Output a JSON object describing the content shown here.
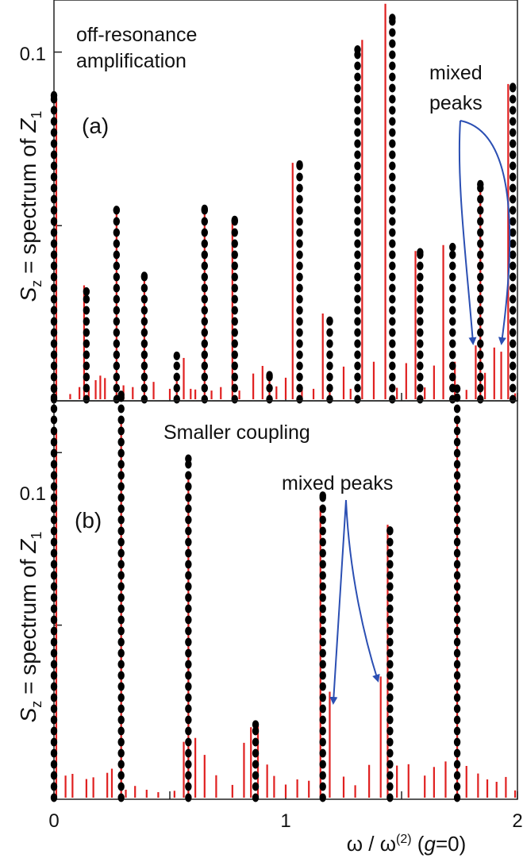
{
  "chart_data": [
    {
      "type": "line",
      "panel_label": "(a)",
      "title": "",
      "annotations": [
        "off-resonance",
        "amplification",
        "mixed",
        "peaks"
      ],
      "ylabel": "S_z = spectrum of Z_1",
      "ylabel_parts": {
        "s": "S",
        "s_sub": "z",
        "middle": " = spectrum of ",
        "z": "Z",
        "z_sub": "1"
      },
      "xlim": [
        0,
        2
      ],
      "ylim": [
        0,
        0.115
      ],
      "yticks": [
        {
          "value": 0.1,
          "label": "0.1"
        }
      ],
      "yticks_unlabeled": [
        0.05
      ],
      "series": [
        {
          "color": "#e02020",
          "style": "stick",
          "x": [
            0.01,
            0.07,
            0.11,
            0.13,
            0.15,
            0.18,
            0.2,
            0.22,
            0.27,
            0.3,
            0.34,
            0.39,
            0.43,
            0.5,
            0.53,
            0.56,
            0.59,
            0.61,
            0.65,
            0.68,
            0.72,
            0.77,
            0.8,
            0.86,
            0.9,
            0.93,
            0.96,
            1.0,
            1.03,
            1.07,
            1.12,
            1.16,
            1.19,
            1.25,
            1.28,
            1.33,
            1.38,
            1.43,
            1.48,
            1.52,
            1.56,
            1.6,
            1.64,
            1.68,
            1.73,
            1.78,
            1.82,
            1.84,
            1.86,
            1.9,
            1.93,
            1.96,
            1.99
          ],
          "y": [
            0.0872,
            0.0015,
            0.0035,
            0.0328,
            0.0032,
            0.0055,
            0.0068,
            0.0061,
            0.0543,
            0.004,
            0.0035,
            0.0355,
            0.005,
            0.003,
            0.0059,
            0.0119,
            0.003,
            0.0028,
            0.0539,
            0.0025,
            0.0035,
            0.0509,
            0.0025,
            0.0074,
            0.0096,
            0.0075,
            0.0037,
            0.0062,
            0.0681,
            0.0034,
            0.003,
            0.0247,
            0.0035,
            0.0094,
            0.003,
            0.1035,
            0.0108,
            0.1139,
            0.0033,
            0.0104,
            0.0427,
            0.0034,
            0.0097,
            0.0444,
            0.0108,
            0.0027,
            0.0155,
            0.0625,
            0.0076,
            0.0149,
            0.0137,
            0.0908,
            0.0017
          ]
        },
        {
          "color": "#000000",
          "style": "dots",
          "x": [
            0.0,
            0.14,
            0.27,
            0.39,
            0.53,
            0.65,
            0.78,
            0.93,
            1.06,
            1.19,
            1.31,
            1.46,
            1.58,
            1.72,
            1.84,
            1.98
          ],
          "y": [
            0.0875,
            0.031,
            0.0545,
            0.0355,
            0.0125,
            0.0548,
            0.0516,
            0.0069,
            0.0676,
            0.0226,
            0.1007,
            0.1098,
            0.0423,
            0.0438,
            0.0619,
            0.0899
          ]
        }
      ]
    },
    {
      "type": "line",
      "panel_label": "(b)",
      "title": "",
      "annotations": [
        "Smaller coupling",
        "mixed peaks"
      ],
      "ylabel": "S_z = spectrum of Z_1",
      "ylabel_parts": {
        "s": "S",
        "s_sub": "z",
        "middle": " = spectrum of ",
        "z": "Z",
        "z_sub": "1"
      },
      "xlabel": "ω / ω^(2) (g=0)",
      "xlabel_parts": {
        "omega": "ω / ω",
        "sup": "(2)",
        "open": " (",
        "g": "g",
        "close": "=0)"
      },
      "xlim": [
        0,
        2
      ],
      "ylim": [
        0,
        0.115
      ],
      "xticks": [
        {
          "value": 0,
          "label": "0"
        },
        {
          "value": 1,
          "label": "1"
        },
        {
          "value": 2,
          "label": "2"
        }
      ],
      "yticks": [
        {
          "value": 0.1,
          "label": "0.1"
        }
      ],
      "yticks_unlabeled": [
        0.05
      ],
      "series": [
        {
          "color": "#e02020",
          "style": "stick",
          "x": [
            0.01,
            0.05,
            0.08,
            0.14,
            0.17,
            0.23,
            0.25,
            0.29,
            0.31,
            0.35,
            0.4,
            0.45,
            0.52,
            0.56,
            0.58,
            0.61,
            0.65,
            0.7,
            0.77,
            0.82,
            0.85,
            0.88,
            0.92,
            0.95,
            1.0,
            1.05,
            1.1,
            1.15,
            1.19,
            1.25,
            1.3,
            1.36,
            1.41,
            1.44,
            1.48,
            1.53,
            1.6,
            1.64,
            1.69,
            1.74,
            1.78,
            1.83,
            1.87,
            1.91,
            1.95,
            1.99
          ],
          "y": [
            0.1061,
            0.0064,
            0.0069,
            0.0054,
            0.0059,
            0.0072,
            0.0084,
            0.1086,
            0.0023,
            0.0034,
            0.0023,
            0.0016,
            0.002,
            0.0162,
            0.0936,
            0.0173,
            0.0124,
            0.0065,
            0.0037,
            0.0159,
            0.0204,
            0.0209,
            0.0096,
            0.0063,
            0.0038,
            0.0053,
            0.0049,
            0.0845,
            0.0307,
            0.0061,
            0.0036,
            0.0095,
            0.0351,
            0.0791,
            0.0093,
            0.0097,
            0.0064,
            0.0089,
            0.0105,
            0.1107,
            0.0092,
            0.007,
            0.0053,
            0.0046,
            0.006,
            0.0021
          ]
        },
        {
          "color": "#000000",
          "style": "dots",
          "x": [
            0.0,
            0.29,
            0.58,
            0.87,
            1.16,
            1.45,
            1.74
          ],
          "y": [
            0.1185,
            0.1167,
            0.0982,
            0.0212,
            0.0875,
            0.0774,
            0.1185
          ]
        }
      ]
    }
  ]
}
